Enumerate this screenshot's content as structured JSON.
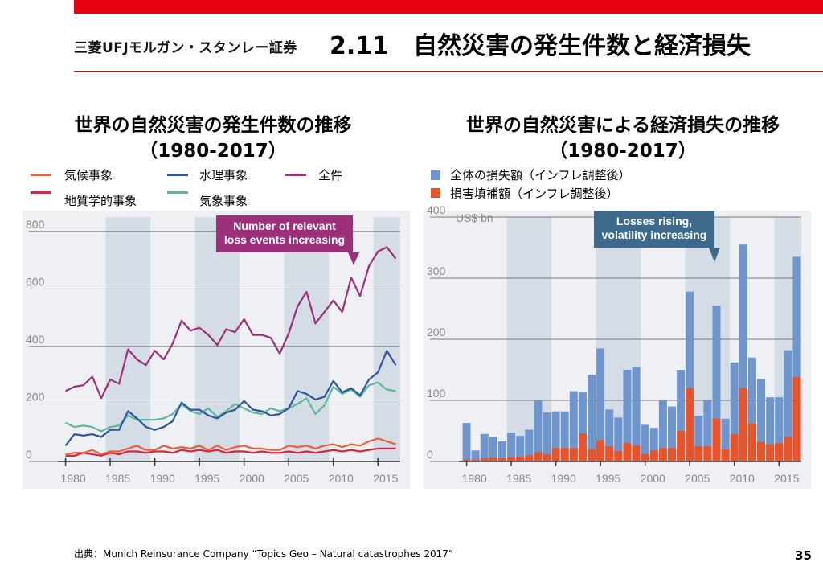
{
  "header": {
    "company": "三菱UFJモルガン・スタンレー証券",
    "title": "2.11　自然災害の発生件数と経済損失"
  },
  "left": {
    "title_line1": "世界の自然災害の発生件数の推移",
    "title_line2": "（1980-2017）",
    "legend": [
      {
        "label": "気候事象",
        "color": "#e8603c"
      },
      {
        "label": "水理事象",
        "color": "#2e5597"
      },
      {
        "label": "全件",
        "color": "#9b2f7a"
      },
      {
        "label": "地質学的事象",
        "color": "#d7263d"
      },
      {
        "label": "気象事象",
        "color": "#5fb89a"
      }
    ]
  },
  "right": {
    "title_line1": "世界の自然災害による経済損失の推移",
    "title_line2": "（1980-2017）",
    "legend": [
      {
        "label": "全体の損失額（インフレ調整後）",
        "color": "#6f95cf"
      },
      {
        "label": "損害填補額（インフレ調整後）",
        "color": "#e8532a"
      }
    ]
  },
  "footer": {
    "source": "出典：Munich Reinsurance Company “Topics Geo – Natural catastrophes 2017”",
    "page": "35"
  },
  "chart_data": [
    {
      "type": "line",
      "annotation": "Number of relevant loss events increasing",
      "x": [
        1980,
        1981,
        1982,
        1983,
        1984,
        1985,
        1986,
        1987,
        1988,
        1989,
        1990,
        1991,
        1992,
        1993,
        1994,
        1995,
        1996,
        1997,
        1998,
        1999,
        2000,
        2001,
        2002,
        2003,
        2004,
        2005,
        2006,
        2007,
        2008,
        2009,
        2010,
        2011,
        2012,
        2013,
        2014,
        2015,
        2016,
        2017
      ],
      "ylim": [
        0,
        850
      ],
      "yticks": [
        0,
        200,
        400,
        600,
        800
      ],
      "xticks": [
        1980,
        1985,
        1990,
        1995,
        2000,
        2005,
        2010,
        2015
      ],
      "shaded_periods": [
        [
          1985,
          1989
        ],
        [
          1995,
          1999
        ],
        [
          2005,
          2009
        ],
        [
          2015,
          2017
        ]
      ],
      "series": [
        {
          "name": "全件",
          "color": "#9b2f7a",
          "values": [
            245,
            260,
            265,
            295,
            220,
            285,
            270,
            390,
            355,
            335,
            385,
            355,
            410,
            490,
            455,
            465,
            440,
            405,
            460,
            450,
            495,
            440,
            440,
            430,
            375,
            445,
            540,
            590,
            480,
            520,
            560,
            520,
            640,
            575,
            680,
            730,
            745,
            705
          ]
        },
        {
          "name": "水理事象",
          "color": "#2e5597",
          "values": [
            55,
            95,
            90,
            95,
            85,
            110,
            110,
            175,
            150,
            120,
            110,
            120,
            140,
            205,
            180,
            180,
            160,
            150,
            170,
            180,
            210,
            180,
            175,
            160,
            165,
            185,
            245,
            235,
            215,
            225,
            280,
            240,
            255,
            230,
            285,
            310,
            385,
            335
          ]
        },
        {
          "name": "気象事象",
          "color": "#5fb89a",
          "values": [
            135,
            120,
            125,
            120,
            105,
            120,
            125,
            160,
            145,
            145,
            145,
            150,
            165,
            200,
            175,
            165,
            185,
            155,
            175,
            200,
            185,
            170,
            165,
            185,
            175,
            185,
            200,
            220,
            165,
            195,
            260,
            235,
            250,
            225,
            265,
            275,
            250,
            245
          ]
        },
        {
          "name": "気候事象",
          "color": "#e8603c",
          "values": [
            25,
            30,
            30,
            40,
            25,
            35,
            35,
            45,
            55,
            40,
            40,
            55,
            45,
            50,
            45,
            55,
            40,
            55,
            40,
            50,
            55,
            45,
            45,
            40,
            40,
            55,
            50,
            55,
            45,
            55,
            60,
            50,
            60,
            55,
            70,
            80,
            70,
            60
          ]
        },
        {
          "name": "地質学的事象",
          "color": "#d7263d",
          "values": [
            20,
            20,
            30,
            25,
            20,
            30,
            25,
            35,
            35,
            30,
            35,
            35,
            30,
            40,
            35,
            40,
            35,
            40,
            30,
            35,
            35,
            30,
            35,
            30,
            30,
            35,
            30,
            35,
            30,
            35,
            40,
            35,
            40,
            35,
            40,
            45,
            45,
            45
          ]
        }
      ]
    },
    {
      "type": "bar",
      "annotation": "Losses rising, volatility increasing",
      "ylabel": "US$ bn",
      "x": [
        1980,
        1981,
        1982,
        1983,
        1984,
        1985,
        1986,
        1987,
        1988,
        1989,
        1990,
        1991,
        1992,
        1993,
        1994,
        1995,
        1996,
        1997,
        1998,
        1999,
        2000,
        2001,
        2002,
        2003,
        2004,
        2005,
        2006,
        2007,
        2008,
        2009,
        2010,
        2011,
        2012,
        2013,
        2014,
        2015,
        2016,
        2017
      ],
      "ylim": [
        0,
        400
      ],
      "yticks": [
        0,
        100,
        200,
        300,
        400
      ],
      "xticks": [
        1980,
        1985,
        1990,
        1995,
        2000,
        2005,
        2010,
        2015
      ],
      "shaded_periods": [
        [
          1985,
          1989
        ],
        [
          1995,
          1999
        ],
        [
          2005,
          2009
        ],
        [
          2015,
          2017
        ]
      ],
      "series": [
        {
          "name": "全体の損失額（インフレ調整後）",
          "color": "#6f95cf",
          "values": [
            63,
            18,
            45,
            40,
            33,
            47,
            42,
            52,
            100,
            80,
            82,
            82,
            115,
            113,
            142,
            185,
            85,
            72,
            150,
            155,
            60,
            55,
            100,
            90,
            150,
            278,
            75,
            100,
            255,
            70,
            162,
            355,
            170,
            135,
            105,
            105,
            182,
            335
          ]
        },
        {
          "name": "損害填補額（インフレ調整後）",
          "color": "#e8532a",
          "values": [
            3,
            3,
            5,
            6,
            5,
            7,
            8,
            10,
            15,
            12,
            22,
            22,
            22,
            46,
            20,
            35,
            25,
            17,
            30,
            26,
            12,
            18,
            22,
            22,
            50,
            120,
            25,
            25,
            70,
            20,
            45,
            120,
            62,
            32,
            28,
            30,
            40,
            138
          ]
        }
      ]
    }
  ]
}
